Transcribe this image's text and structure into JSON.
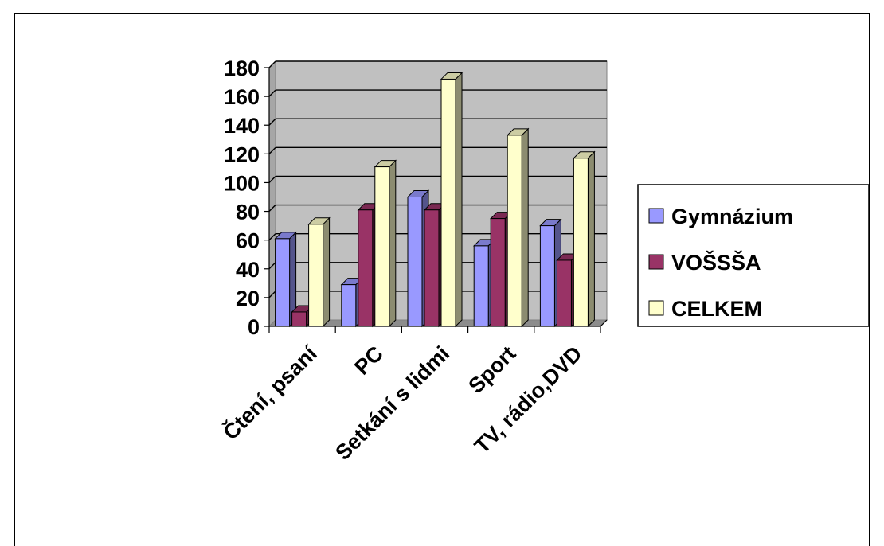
{
  "chart_data": {
    "type": "bar",
    "categories": [
      "Čtení, psaní",
      "PC",
      "Setkání s lidmi",
      "Sport",
      "TV, rádio,DVD"
    ],
    "series": [
      {
        "name": "Gymnázium",
        "values": [
          61,
          29,
          90,
          56,
          70
        ]
      },
      {
        "name": "VOŠSŠA",
        "values": [
          10,
          81,
          81,
          75,
          46
        ]
      },
      {
        "name": "CELKEM",
        "values": [
          71,
          111,
          172,
          133,
          117
        ]
      }
    ],
    "yticks": [
      "0",
      "20",
      "40",
      "60",
      "80",
      "100",
      "120",
      "140",
      "160",
      "180"
    ],
    "ylim": [
      0,
      180
    ],
    "grid": true,
    "legend_position": "right",
    "colors": {
      "Gymnázium": "#9999ff",
      "VOŠSŠA": "#993366",
      "CELKEM": "#ffffcc",
      "plot_area": "#c0c0c0"
    }
  }
}
